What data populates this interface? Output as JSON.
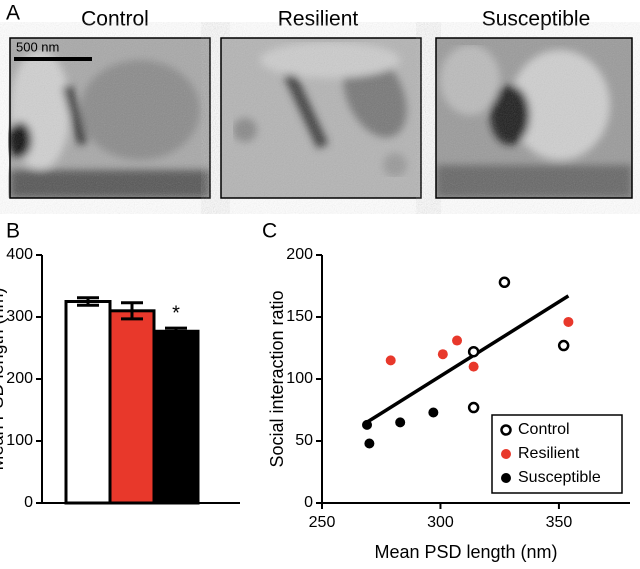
{
  "panel_labels": [
    "A",
    "B",
    "C"
  ],
  "micrographs": {
    "labels": [
      "Control",
      "Resilient",
      "Susceptible"
    ],
    "scale_bar": "500 nm"
  },
  "chart_data": [
    {
      "type": "bar",
      "ylabel": "Mean PSD length (nm)",
      "categories": [
        null,
        null,
        null
      ],
      "values": [
        325,
        310,
        277
      ],
      "errors": [
        6,
        13,
        5
      ],
      "colors": [
        "#ffffff",
        "#e8382b",
        "#000000"
      ],
      "annotations": [
        null,
        null,
        "*"
      ],
      "ylim": [
        0,
        400
      ],
      "yticks": [
        0,
        100,
        200,
        300,
        400
      ]
    },
    {
      "type": "scatter",
      "xlabel": "Mean PSD length (nm)",
      "ylabel": "Social interaction ratio",
      "xlim": [
        250,
        380
      ],
      "ylim": [
        0,
        200
      ],
      "xticks": [
        250,
        300,
        350
      ],
      "yticks": [
        0,
        50,
        100,
        150,
        200
      ],
      "legend": "lower right",
      "series": [
        {
          "name": "Control",
          "color": "#000000",
          "marker": "open",
          "x": [
            314,
            327,
            352,
            314
          ],
          "values": [
            122,
            178,
            127,
            77
          ]
        },
        {
          "name": "Resilient",
          "color": "#e8382b",
          "marker": "filled",
          "x": [
            279,
            301,
            307,
            314,
            354
          ],
          "values": [
            115,
            120,
            131,
            110,
            146
          ]
        },
        {
          "name": "Susceptible",
          "color": "#000000",
          "marker": "filled",
          "x": [
            269,
            270,
            283,
            297
          ],
          "values": [
            63,
            48,
            65,
            73
          ]
        }
      ],
      "fit": {
        "x": [
          268,
          354
        ],
        "values": [
          64,
          167
        ]
      }
    }
  ]
}
